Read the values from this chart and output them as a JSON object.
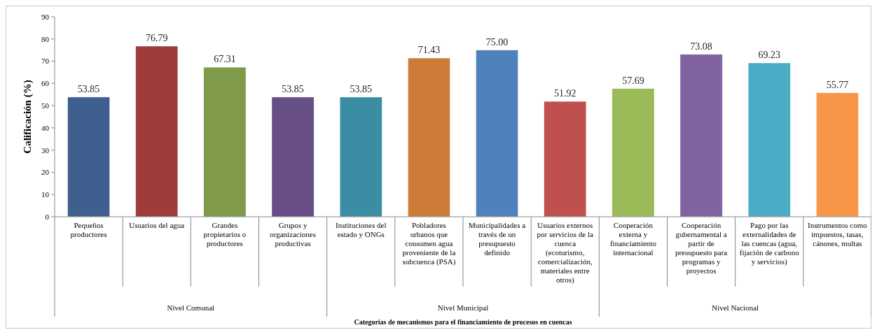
{
  "chart_data": {
    "type": "bar",
    "ylabel": "Calificación (%)",
    "xlabel": "Categorías de mecanismos para el financiamiento de procesos en cuencas",
    "categories": [
      "Pequeños productores",
      "Usuarios del agua",
      "Grandes propietarios o productores",
      "Grupos y organizaciones productivas",
      "Instituciones del estado y ONGs",
      "Pobladores urbanos que consumen agua proveniente de la subcuenca (PSA)",
      "Municipalidades a través de un presupuesto definido",
      "Usuarios externos por servicios de la cuenca (ecoturismo, comercialización, materiales entre otros)",
      "Cooperación externa y financiamiento internacional",
      "Cooperación gubernamental a partir de presupuesto para programas y proyectos",
      "Pago por las externalidades de las cuencas (agua, fijación de carbono y servicios)",
      "Instrumentos como impuestos, tasas, cánones, multas"
    ],
    "values": [
      53.85,
      76.79,
      67.31,
      53.85,
      53.85,
      71.43,
      75.0,
      51.92,
      57.69,
      73.08,
      69.23,
      55.77
    ],
    "value_labels": [
      "53.85",
      "76.79",
      "67.31",
      "53.85",
      "53.85",
      "71.43",
      "75.00",
      "51.92",
      "57.69",
      "73.08",
      "69.23",
      "55.77"
    ],
    "colors": [
      "#3f5f8f",
      "#9c3d3a",
      "#7f9a48",
      "#674e86",
      "#3a8da2",
      "#cc7b38",
      "#4f81bd",
      "#c0504d",
      "#9bbb59",
      "#8064a2",
      "#4bacc6",
      "#f79646"
    ],
    "annotations": [
      "Nivel Comunal",
      "Nivel Municipal",
      "Nivel Nacional"
    ],
    "ylim": [
      0,
      90
    ],
    "yticks": [
      0,
      10,
      20,
      30,
      40,
      50,
      60,
      70,
      80,
      90
    ],
    "grid": false
  }
}
